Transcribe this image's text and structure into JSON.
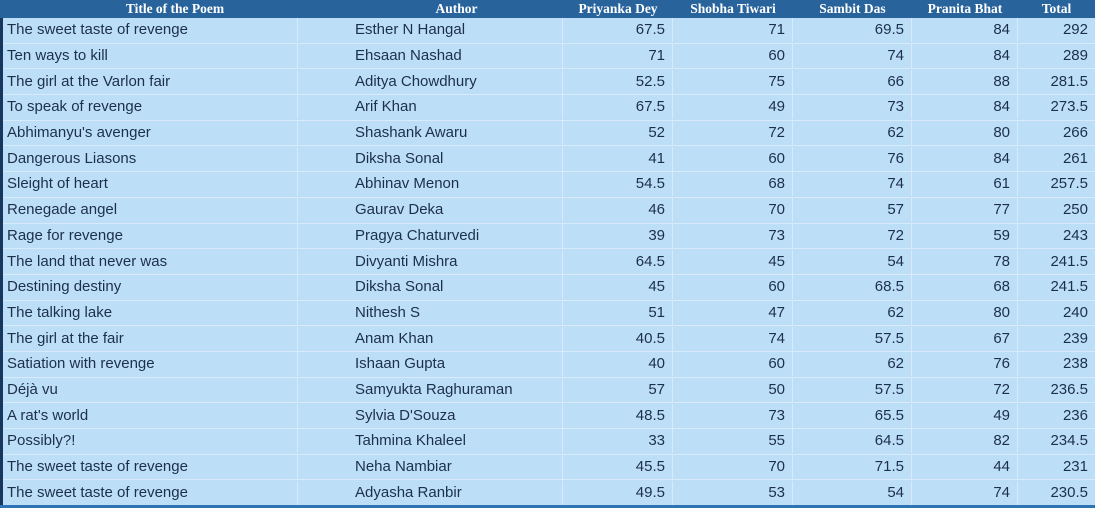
{
  "colors": {
    "header_bg": "#28639C",
    "header_text": "#FFFFFF",
    "row_bg": "#BDDEF7",
    "row_separator": "#D9EBFA",
    "cell_text": "#1C2F4E",
    "left_border": "#17375E",
    "bottom_border": "#2E74B5"
  },
  "table": {
    "columns": [
      {
        "key": "title",
        "label": "Title of the Poem"
      },
      {
        "key": "author",
        "label": "Author"
      },
      {
        "key": "judge1",
        "label": "Priyanka Dey"
      },
      {
        "key": "judge2",
        "label": "Shobha Tiwari"
      },
      {
        "key": "judge3",
        "label": "Sambit Das"
      },
      {
        "key": "judge4",
        "label": "Pranita Bhat"
      },
      {
        "key": "total",
        "label": "Total"
      }
    ],
    "rows": [
      [
        "The sweet taste of revenge",
        "Esther N Hangal",
        67.5,
        71,
        69.5,
        84,
        292
      ],
      [
        "Ten ways to kill",
        "Ehsaan Nashad",
        71,
        60,
        74,
        84,
        289
      ],
      [
        "The girl at the Varlon fair",
        "Aditya Chowdhury",
        52.5,
        75,
        66,
        88,
        281.5
      ],
      [
        "To speak of revenge",
        "Arif Khan",
        67.5,
        49,
        73,
        84,
        273.5
      ],
      [
        "Abhimanyu's avenger",
        "Shashank Awaru",
        52,
        72,
        62,
        80,
        266
      ],
      [
        "Dangerous Liasons",
        "Diksha Sonal",
        41,
        60,
        76,
        84,
        261
      ],
      [
        "Sleight of heart",
        "Abhinav Menon",
        54.5,
        68,
        74,
        61,
        257.5
      ],
      [
        "Renegade angel",
        "Gaurav Deka",
        46,
        70,
        57,
        77,
        250
      ],
      [
        "Rage for revenge",
        "Pragya Chaturvedi",
        39,
        73,
        72,
        59,
        243
      ],
      [
        "The land that never was",
        "Divyanti Mishra",
        64.5,
        45,
        54,
        78,
        241.5
      ],
      [
        "Destining destiny",
        "Diksha Sonal",
        45,
        60,
        68.5,
        68,
        241.5
      ],
      [
        "The talking lake",
        "Nithesh S",
        51,
        47,
        62,
        80,
        240
      ],
      [
        "The girl at the fair",
        "Anam Khan",
        40.5,
        74,
        57.5,
        67,
        239
      ],
      [
        "Satiation with revenge",
        "Ishaan Gupta",
        40,
        60,
        62,
        76,
        238
      ],
      [
        "Déjà vu",
        "Samyukta Raghuraman",
        57,
        50,
        57.5,
        72,
        236.5
      ],
      [
        "A rat's world",
        "Sylvia D'Souza",
        48.5,
        73,
        65.5,
        49,
        236
      ],
      [
        "Possibly?!",
        "Tahmina Khaleel",
        33,
        55,
        64.5,
        82,
        234.5
      ],
      [
        "The sweet taste of revenge",
        "Neha Nambiar",
        45.5,
        70,
        71.5,
        44,
        231
      ],
      [
        "The sweet taste of revenge",
        "Adyasha Ranbir",
        49.5,
        53,
        54,
        74,
        230.5
      ]
    ]
  }
}
